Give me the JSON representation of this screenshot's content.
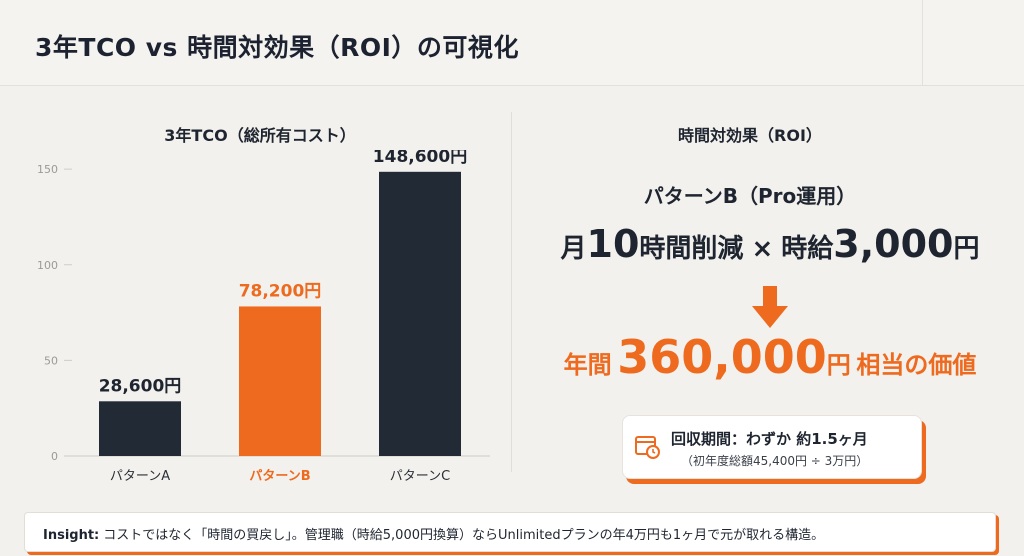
{
  "title": "3年TCO vs 時間対効果（ROI）の可視化",
  "left_panel": {
    "title": "3年TCO（総所有コスト）"
  },
  "chart_data": {
    "type": "bar",
    "title": "3年TCO（総所有コスト）",
    "categories": [
      "パターンA",
      "パターンB",
      "パターンC"
    ],
    "values": [
      28.6,
      78.2,
      148.6
    ],
    "data_labels": [
      "28,600円",
      "78,200円",
      "148,600円"
    ],
    "highlight_index": 1,
    "ylim": [
      0,
      160
    ],
    "yticks": [
      0,
      50,
      100,
      150
    ],
    "colors": {
      "default": "#222a36",
      "highlight": "#ee6a1f"
    },
    "grid": false
  },
  "right_panel": {
    "title": "時間対効果（ROI）",
    "pattern_label": "パターンB（Pro運用）",
    "formula": {
      "p1": "月",
      "hours": "10",
      "p2": "時間削減",
      "times": "×",
      "p3": "時給",
      "rate": "3,000",
      "p4": "円"
    },
    "value": {
      "prefix": "年間",
      "amount": "360,000",
      "suffix1": "円",
      "suffix2": "相当の価値"
    },
    "payback": {
      "line1": "回収期間：わずか 約1.5ヶ月",
      "line2": "（初年度総額45,400円 ÷ 3万円）",
      "icon": "calendar-clock-icon"
    }
  },
  "insight": {
    "label": "Insight:",
    "text": "コストではなく「時間の買戻し」。管理職（時給5,000円換算）ならUnlimitedプランの年4万円も1ヶ月で元が取れる構造。"
  },
  "colors": {
    "accent": "#ee6a1f",
    "dark": "#222a36",
    "background": "#f2f1ed"
  }
}
